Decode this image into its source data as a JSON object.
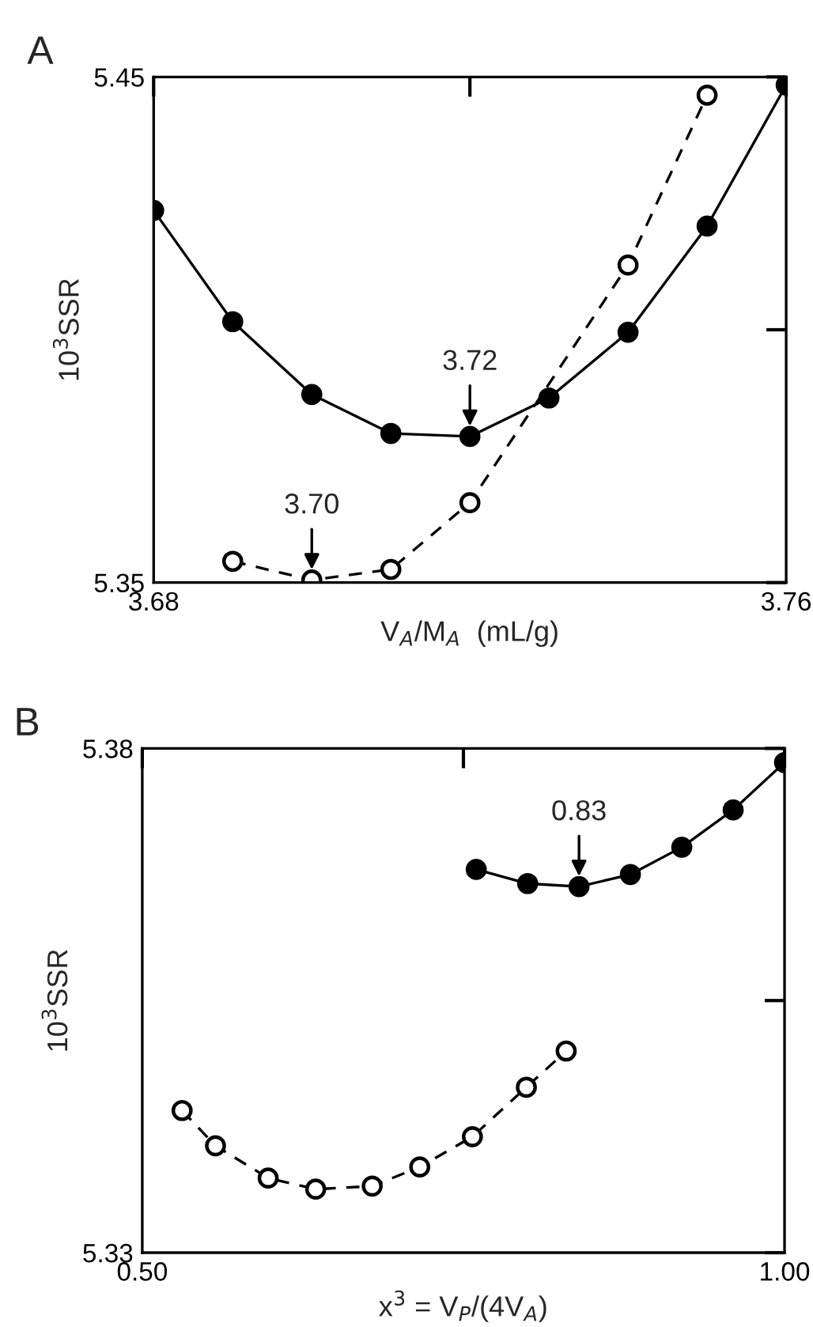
{
  "chart_data": [
    {
      "type": "line",
      "title": "A",
      "xlabel": "V$_{A}$/M$_{A}$  (mL/g)",
      "ylabel": "10$^{3}$SSR",
      "xlim": [
        3.68,
        3.76
      ],
      "ylim": [
        5.35,
        5.45
      ],
      "xticks": [
        3.68,
        {
          "value": 3.72,
          "label": null
        },
        3.76
      ],
      "yticks": [
        5.35,
        {
          "value": 5.4,
          "label": null
        },
        5.45
      ],
      "grid": false,
      "marker": "circle",
      "series": [
        {
          "color": "#000000",
          "line_style": "solid",
          "x": [
            3.68,
            3.69,
            3.7,
            3.71,
            3.72,
            3.73,
            3.74,
            3.75,
            3.76
          ],
          "values": [
            5.4236,
            5.4016,
            5.3872,
            5.3795,
            5.3789,
            5.3865,
            5.3995,
            5.4205,
            5.4484
          ]
        },
        {
          "color": "#000000",
          "line_style": "dashed",
          "x": [
            3.69,
            3.7,
            3.71,
            3.72,
            3.74,
            3.75
          ],
          "values": [
            5.3542,
            5.3505,
            5.3526,
            5.3658,
            5.4128,
            5.4464
          ]
        }
      ],
      "annotations": [
        {
          "text": "3.72",
          "x": 3.72,
          "y": 5.3789
        },
        {
          "text": "3.70",
          "x": 3.7,
          "y": 5.3505
        }
      ]
    },
    {
      "type": "line",
      "title": "B",
      "xlabel": "x$^{3}$ = V$_{P}$/(4V$_{A}$)",
      "ylabel": "10$^{3}$SSR",
      "xlim": [
        0.5,
        1.0
      ],
      "ylim": [
        5.33,
        5.38
      ],
      "xticks": [
        {
          "value": 0.5,
          "label": "0.50"
        },
        {
          "value": 0.75,
          "label": null
        },
        {
          "value": 1.0,
          "label": "1.00"
        }
      ],
      "yticks": [
        5.33,
        {
          "value": 5.355,
          "label": null
        },
        5.38
      ],
      "grid": false,
      "marker": "circle",
      "series": [
        {
          "color": "#000000",
          "line_style": "solid",
          "x": [
            0.76,
            0.8,
            0.84,
            0.88,
            0.92,
            0.96,
            1.0
          ],
          "values": [
            5.368,
            5.3666,
            5.3663,
            5.3675,
            5.3702,
            5.3739,
            5.3786
          ]
        },
        {
          "color": "#000000",
          "line_style": "dashed",
          "x": [
            0.531,
            0.557,
            0.598,
            0.635,
            0.679,
            0.716,
            0.757,
            0.799,
            0.83
          ],
          "values": [
            5.3441,
            5.3406,
            5.3374,
            5.3363,
            5.3366,
            5.3385,
            5.3415,
            5.3464,
            5.35
          ]
        }
      ],
      "annotations": [
        {
          "text": "0.83",
          "x": 0.84,
          "y": 5.3663
        }
      ]
    }
  ]
}
